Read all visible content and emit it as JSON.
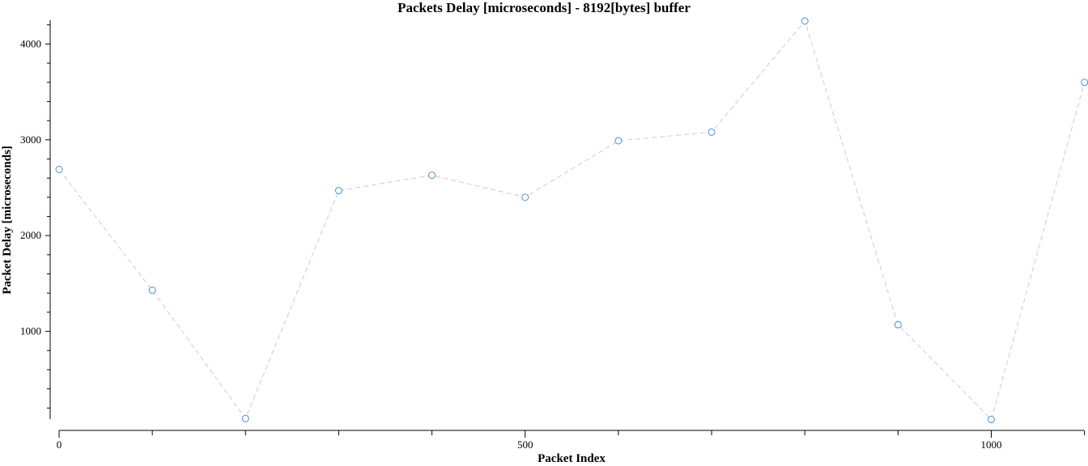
{
  "chart_data": {
    "type": "scatter",
    "title": "Packets Delay [microseconds] - 8192[bytes] buffer",
    "xlabel": "Packet Index",
    "ylabel": "Packet Delay [microseconds]",
    "xlim": [
      0,
      1103
    ],
    "ylim": [
      0,
      4250
    ],
    "x_ticks_major": [
      0,
      500,
      1000
    ],
    "x_ticks_minor": [
      100,
      200,
      300,
      400,
      600,
      700,
      800,
      900,
      1100
    ],
    "y_ticks_major": [
      1000,
      2000,
      3000,
      4000
    ],
    "y_ticks_minor_step": 200,
    "grid": false,
    "marker": "open-circle",
    "line_style": "dashed",
    "colors": {
      "marker": "#4a90d9",
      "line": "#cccccc",
      "axis": "#000000"
    },
    "series": [
      {
        "x": [
          0,
          100,
          200,
          300,
          400,
          500,
          600,
          700,
          800,
          900,
          1000,
          1100
        ],
        "y": [
          2690,
          1430,
          90,
          2470,
          2630,
          2400,
          2990,
          3080,
          4240,
          1070,
          80,
          3600
        ]
      }
    ]
  }
}
